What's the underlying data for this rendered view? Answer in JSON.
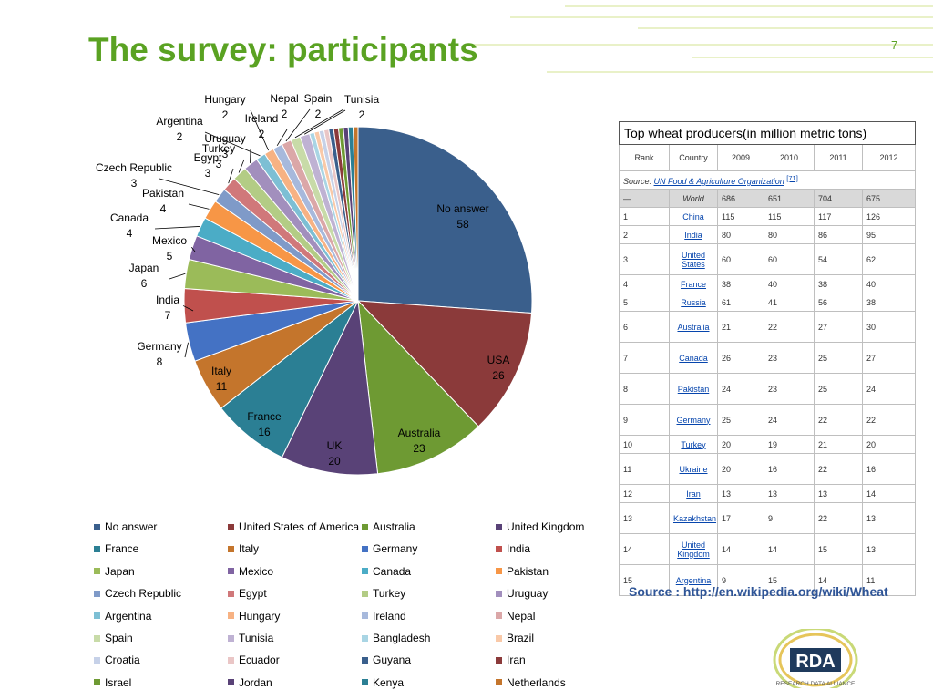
{
  "slide": {
    "title": "The survey: participants",
    "page_number": "7",
    "source_note": "Source : http://en.wikipedia.org/wiki/Wheat"
  },
  "colors": {
    "title_green": "#5aa222",
    "source_blue": "#2f5597",
    "palette": [
      "#3a5f8c",
      "#8b3a3a",
      "#6e9a33",
      "#594277",
      "#2b7f94",
      "#c4752c",
      "#4472c4",
      "#c0504d",
      "#9bbb59",
      "#8064a2",
      "#4bacc6",
      "#f79646",
      "#7f9ac8",
      "#d0787a",
      "#b3cc85",
      "#a28fbd",
      "#7dbfd4",
      "#f7b283",
      "#a7b9dc",
      "#dba7a8",
      "#c8dba8",
      "#bfb2d3",
      "#a9d5e4",
      "#f9c9a8",
      "#c6d1e8",
      "#eac6c6"
    ]
  },
  "chart_data": {
    "type": "pie",
    "title": "",
    "legend_position": "bottom",
    "start_angle": "top, clockwise",
    "slices": [
      {
        "name": "No answer",
        "label": "No answer",
        "value": 58
      },
      {
        "name": "United States of America",
        "label": "USA",
        "value": 26
      },
      {
        "name": "Australia",
        "label": "Australia",
        "value": 23
      },
      {
        "name": "United Kingdom",
        "label": "UK",
        "value": 20
      },
      {
        "name": "France",
        "label": "France",
        "value": 16
      },
      {
        "name": "Italy",
        "label": "Italy",
        "value": 11
      },
      {
        "name": "Germany",
        "label": "Germany",
        "value": 8
      },
      {
        "name": "India",
        "label": "India",
        "value": 7
      },
      {
        "name": "Japan",
        "label": "Japan",
        "value": 6
      },
      {
        "name": "Mexico",
        "label": "Mexico",
        "value": 5
      },
      {
        "name": "Canada",
        "label": "Canada",
        "value": 4
      },
      {
        "name": "Pakistan",
        "label": "Pakistan",
        "value": 4
      },
      {
        "name": "Czech Republic",
        "label": "Czech Republic",
        "value": 3
      },
      {
        "name": "Egypt",
        "label": "Egypt",
        "value": 3
      },
      {
        "name": "Turkey",
        "label": "Turkey",
        "value": 3
      },
      {
        "name": "Uruguay",
        "label": "Uruguay",
        "value": 3
      },
      {
        "name": "Argentina",
        "label": "Argentina",
        "value": 2
      },
      {
        "name": "Hungary",
        "label": "Hungary",
        "value": 2
      },
      {
        "name": "Ireland",
        "label": "Ireland",
        "value": 2
      },
      {
        "name": "Nepal",
        "label": "Nepal",
        "value": 2
      },
      {
        "name": "Spain",
        "label": "Spain",
        "value": 2
      },
      {
        "name": "Tunisia",
        "label": "Tunisia",
        "value": 2
      },
      {
        "name": "Bangladesh",
        "label": "",
        "value": 1
      },
      {
        "name": "Brazil",
        "label": "",
        "value": 1
      },
      {
        "name": "Croatia",
        "label": "",
        "value": 1
      },
      {
        "name": "Ecuador",
        "label": "",
        "value": 1
      },
      {
        "name": "Guyana",
        "label": "",
        "value": 1
      },
      {
        "name": "Iran",
        "label": "",
        "value": 1
      },
      {
        "name": "Israel",
        "label": "",
        "value": 1
      },
      {
        "name": "Jordan",
        "label": "",
        "value": 1
      },
      {
        "name": "Kenya",
        "label": "",
        "value": 1
      },
      {
        "name": "Netherlands",
        "label": "",
        "value": 1
      }
    ]
  },
  "wheat_table": {
    "caption": "Top wheat producers(in million metric tons)",
    "headers": [
      "Rank",
      "Country",
      "2009",
      "2010",
      "2011",
      "2012"
    ],
    "source_label": "Source: ",
    "source_link": "UN Food & Agriculture Organization",
    "source_ref": "[71]",
    "rows": [
      [
        "—",
        "World",
        "686",
        "651",
        "704",
        "675"
      ],
      [
        "1",
        "China",
        "115",
        "115",
        "117",
        "126"
      ],
      [
        "2",
        "India",
        "80",
        "80",
        "86",
        "95"
      ],
      [
        "3",
        "United States",
        "60",
        "60",
        "54",
        "62"
      ],
      [
        "4",
        "France",
        "38",
        "40",
        "38",
        "40"
      ],
      [
        "5",
        "Russia",
        "61",
        "41",
        "56",
        "38"
      ],
      [
        "6",
        "Australia",
        "21",
        "22",
        "27",
        "30"
      ],
      [
        "7",
        "Canada",
        "26",
        "23",
        "25",
        "27"
      ],
      [
        "8",
        "Pakistan",
        "24",
        "23",
        "25",
        "24"
      ],
      [
        "9",
        "Germany",
        "25",
        "24",
        "22",
        "22"
      ],
      [
        "10",
        "Turkey",
        "20",
        "19",
        "21",
        "20"
      ],
      [
        "11",
        "Ukraine",
        "20",
        "16",
        "22",
        "16"
      ],
      [
        "12",
        "Iran",
        "13",
        "13",
        "13",
        "14"
      ],
      [
        "13",
        "Kazakhstan",
        "17",
        "9",
        "22",
        "13"
      ],
      [
        "14",
        "United Kingdom",
        "14",
        "14",
        "15",
        "13"
      ],
      [
        "15",
        "Argentina",
        "9",
        "15",
        "14",
        "11"
      ]
    ]
  },
  "logo": {
    "text": "RDA",
    "subtitle": "RESEARCH DATA ALLIANCE"
  }
}
